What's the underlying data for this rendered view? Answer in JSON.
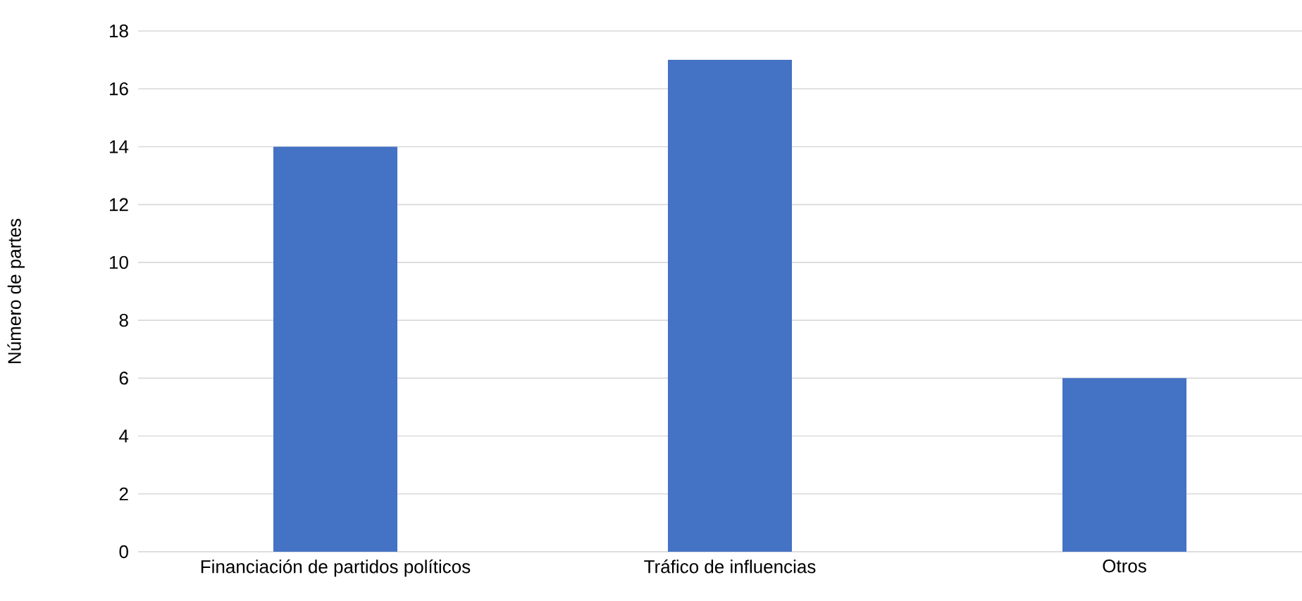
{
  "chart_data": {
    "type": "bar",
    "ylabel": "Número de partes",
    "categories": [
      "Financiación de partidos políticos",
      "Tráfico de influencias",
      "Otros"
    ],
    "values": [
      14,
      17,
      6
    ],
    "color": "#4472c4",
    "ylim": [
      0,
      18
    ],
    "yticks": [
      0,
      2,
      4,
      6,
      8,
      10,
      12,
      14,
      16,
      18
    ],
    "grid": "y"
  }
}
